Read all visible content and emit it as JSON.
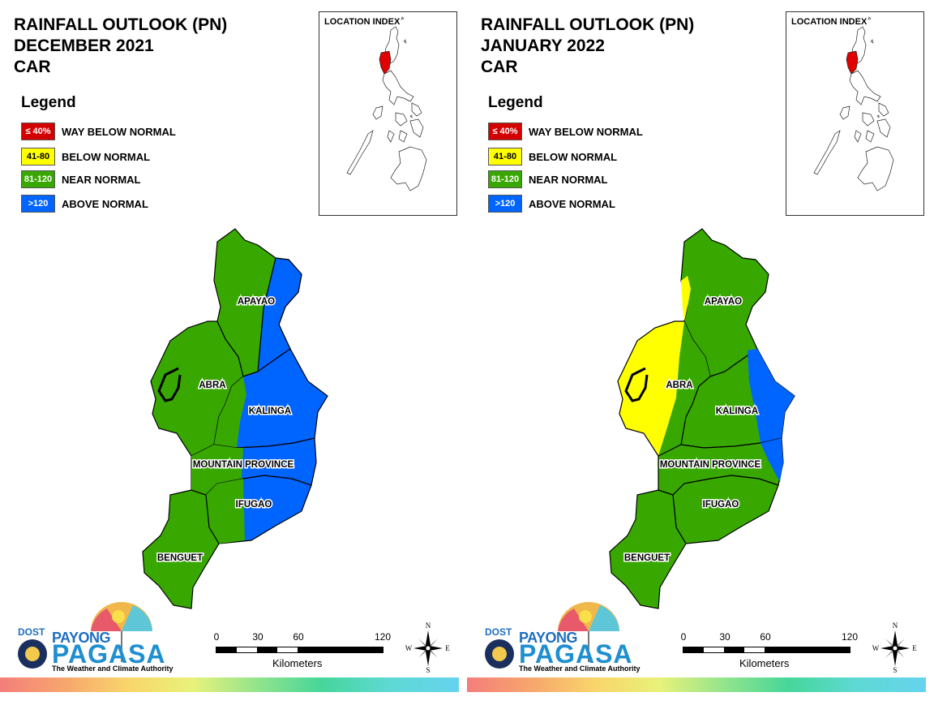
{
  "panels": [
    {
      "title_line1": "RAINFALL OUTLOOK (PN)",
      "title_line2": "DECEMBER 2021",
      "title_line3": "CAR",
      "legend_title": "Legend",
      "legend": [
        {
          "swatch": "≤ 40%",
          "label": "WAY BELOW NORMAL",
          "color": "#d40000",
          "text_color": "#ffffff"
        },
        {
          "swatch": "41-80",
          "label": "BELOW NORMAL",
          "color": "#ffff00",
          "text_color": "#000000"
        },
        {
          "swatch": "81-120",
          "label": "NEAR NORMAL",
          "color": "#38a800",
          "text_color": "#ffffff"
        },
        {
          "swatch": ">120",
          "label": "ABOVE NORMAL",
          "color": "#0064ff",
          "text_color": "#ffffff"
        }
      ],
      "location_index": "LOCATION INDEX",
      "provinces": {
        "apayao": "APAYAO",
        "abra": "ABRA",
        "kalinga": "KALINGA",
        "mountain_province": "MOUNTAIN PROVINCE",
        "ifugao": "IFUGAO",
        "benguet": "BENGUET"
      },
      "province_categories": {
        "apayao": "NEAR NORMAL (west) / ABOVE NORMAL (east)",
        "abra": "NEAR NORMAL",
        "kalinga": "ABOVE NORMAL (most) / NEAR NORMAL (west)",
        "mountain_province": "NEAR NORMAL (west) / ABOVE NORMAL (east)",
        "ifugao": "NEAR NORMAL (west) / ABOVE NORMAL (east)",
        "benguet": "NEAR NORMAL"
      },
      "scale": {
        "ticks": [
          "0",
          "30",
          "60",
          "120"
        ],
        "unit": "Kilometers"
      },
      "compass": {
        "n": "N",
        "s": "S",
        "e": "E",
        "w": "W"
      },
      "logo": {
        "dost": "DOST",
        "payong": "PAYONG",
        "pagasa": "PAGASA",
        "tagline": "The Weather and Climate Authority"
      }
    },
    {
      "title_line1": "RAINFALL OUTLOOK (PN)",
      "title_line2": "JANUARY 2022",
      "title_line3": "CAR",
      "legend_title": "Legend",
      "legend": [
        {
          "swatch": "≤ 40%",
          "label": "WAY BELOW NORMAL",
          "color": "#d40000",
          "text_color": "#ffffff"
        },
        {
          "swatch": "41-80",
          "label": "BELOW NORMAL",
          "color": "#ffff00",
          "text_color": "#000000"
        },
        {
          "swatch": "81-120",
          "label": "NEAR NORMAL",
          "color": "#38a800",
          "text_color": "#ffffff"
        },
        {
          "swatch": ">120",
          "label": "ABOVE NORMAL",
          "color": "#0064ff",
          "text_color": "#ffffff"
        }
      ],
      "location_index": "LOCATION INDEX",
      "provinces": {
        "apayao": "APAYAO",
        "abra": "ABRA",
        "kalinga": "KALINGA",
        "mountain_province": "MOUNTAIN PROVINCE",
        "ifugao": "IFUGAO",
        "benguet": "BENGUET"
      },
      "province_categories": {
        "apayao": "NEAR NORMAL (most) / BELOW NORMAL (west edge)",
        "abra": "BELOW NORMAL (most) / NEAR NORMAL (east)",
        "kalinga": "NEAR NORMAL (most) / ABOVE NORMAL (east)",
        "mountain_province": "NEAR NORMAL (most) / ABOVE NORMAL (east)",
        "ifugao": "NEAR NORMAL",
        "benguet": "NEAR NORMAL"
      },
      "scale": {
        "ticks": [
          "0",
          "30",
          "60",
          "120"
        ],
        "unit": "Kilometers"
      },
      "compass": {
        "n": "N",
        "s": "S",
        "e": "E",
        "w": "W"
      },
      "logo": {
        "dost": "DOST",
        "payong": "PAYONG",
        "pagasa": "PAGASA",
        "tagline": "The Weather and Climate Authority"
      }
    }
  ]
}
